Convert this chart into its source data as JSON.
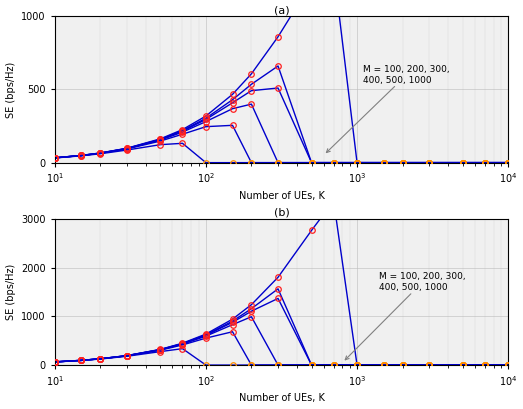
{
  "title_a": "(a)",
  "title_b": "(b)",
  "xlabel": "Number of UEs, K",
  "ylabel": "SE (bps/Hz)",
  "M_values": [
    100,
    200,
    300,
    400,
    500,
    1000
  ],
  "K_values": [
    10,
    15,
    20,
    30,
    50,
    70,
    100,
    150,
    200,
    300,
    500,
    700,
    1000,
    1500,
    2000,
    3000,
    5000,
    7000,
    10000
  ],
  "line_color": "#0000CC",
  "marker_color_red": "#FF2020",
  "marker_color_orange": "#FF8C00",
  "annotation_text": "M = 100, 200, 300,\n400, 500, 1000",
  "bg_color": "#F0F0F0",
  "grid_color": "#BBBBBB",
  "ylim_a": [
    0,
    1000
  ],
  "yticks_a": [
    0,
    500,
    1000
  ],
  "ylim_b": [
    0,
    3000
  ],
  "yticks_b": [
    0,
    1000,
    2000,
    3000
  ],
  "snr_a": 15,
  "snr_b": 200,
  "scale_a": 1.0,
  "scale_b": 1.0
}
